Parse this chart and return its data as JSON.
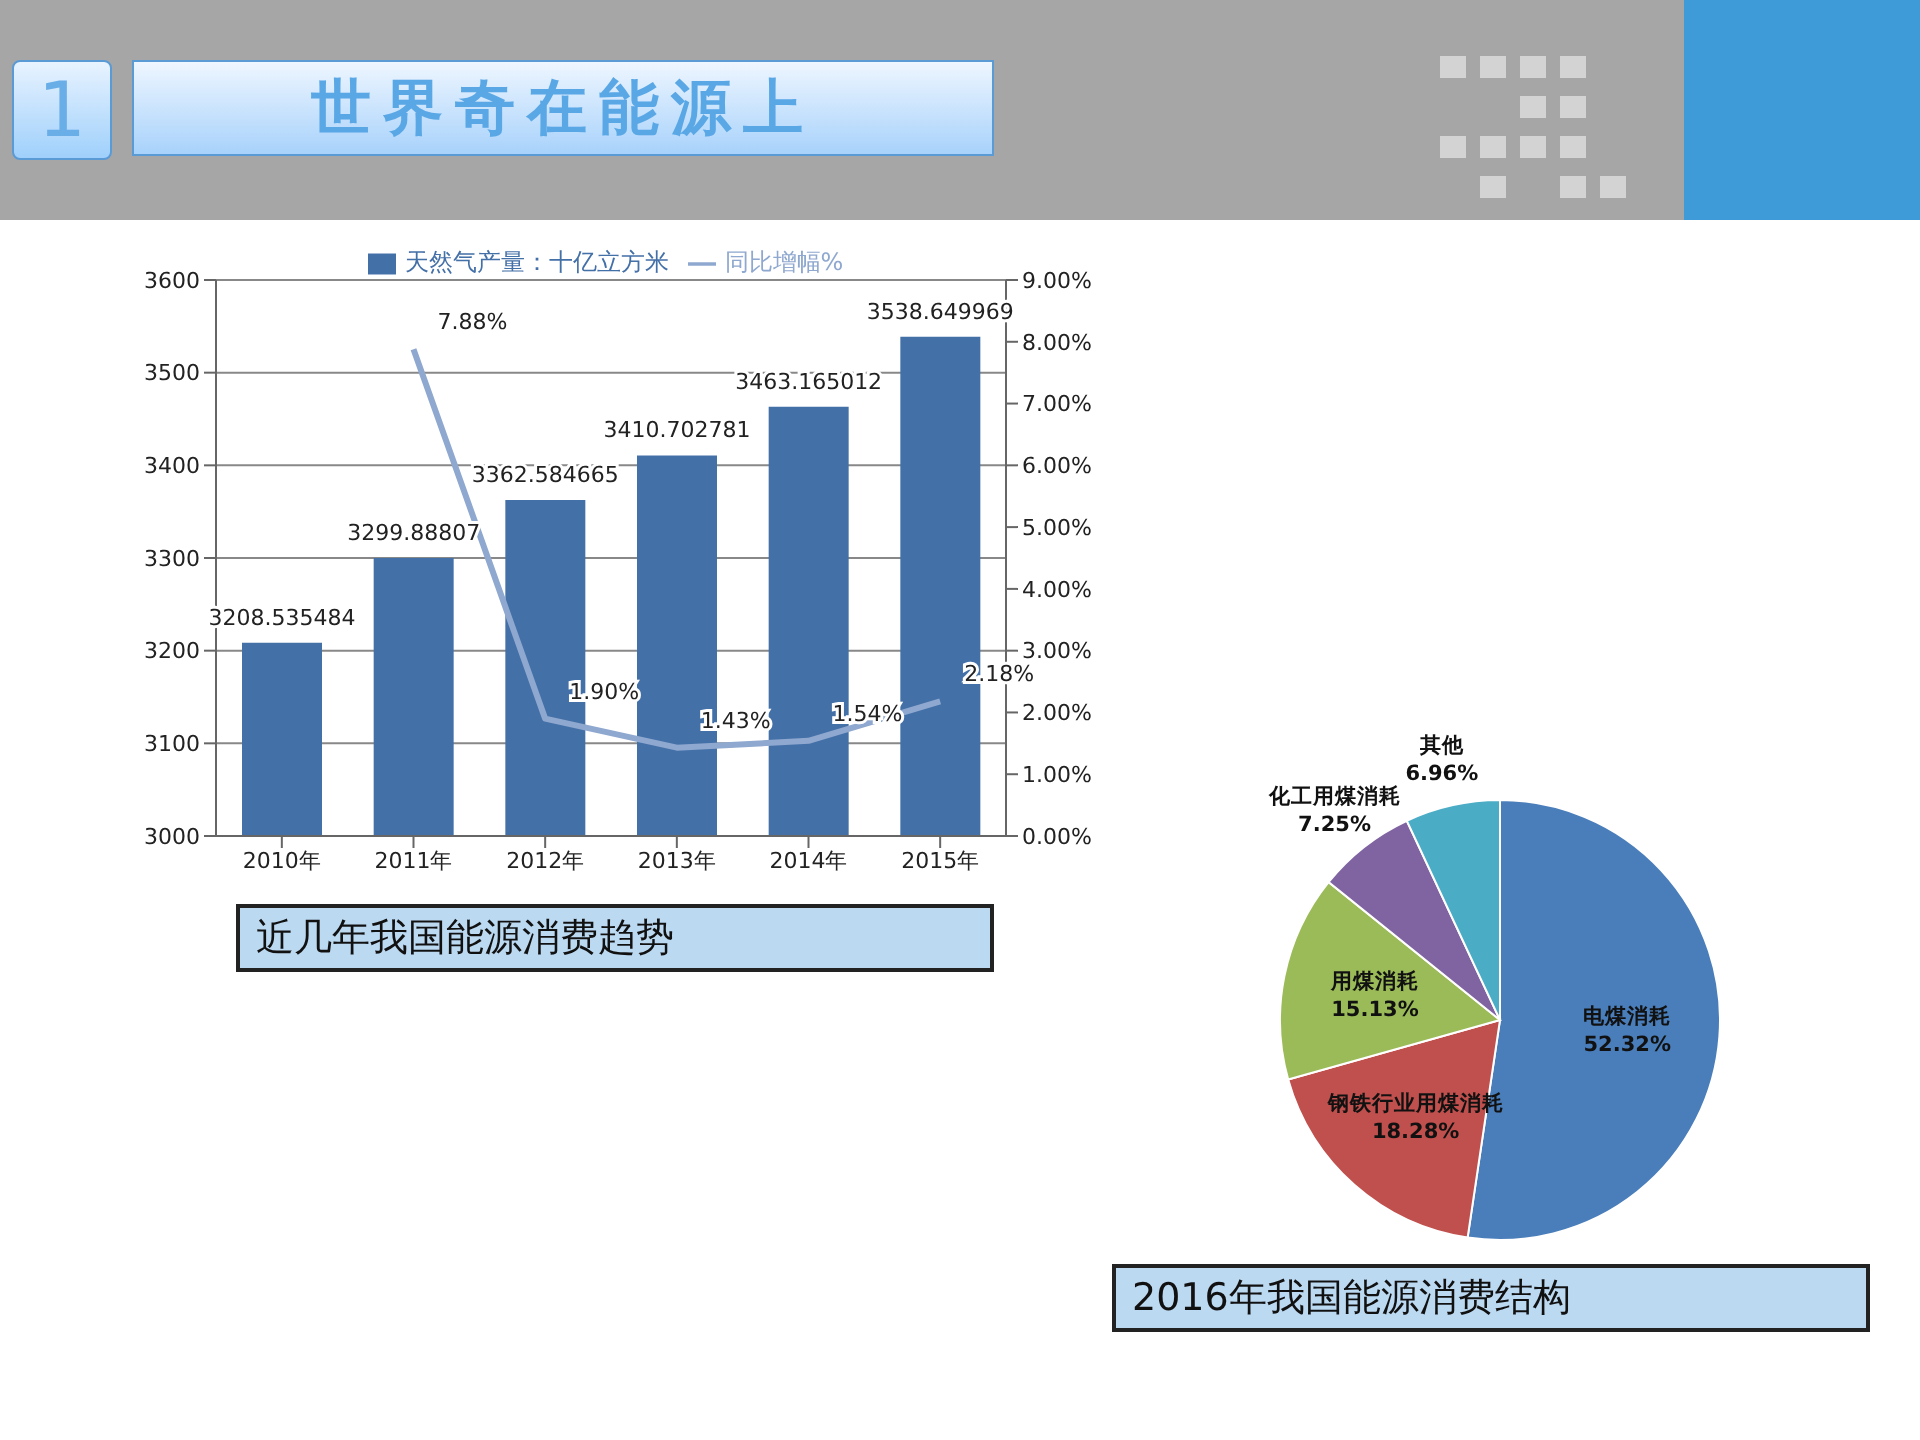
{
  "chart_data": [
    {
      "type": "bar",
      "categories": [
        "2010年",
        "2011年",
        "2012年",
        "2013年",
        "2014年",
        "2015年"
      ],
      "series": [
        {
          "type": "bar",
          "name": "天然气产量：十亿立方米",
          "color": "#4470a8",
          "values": [
            3208.535484,
            3299.88807,
            3362.584665,
            3410.702781,
            3463.165012,
            3538.649969
          ],
          "value_labels": [
            "3208.535484",
            "3299.88807",
            "3362.584665",
            "3410.702781",
            "3463.165012",
            "3538.649969"
          ]
        },
        {
          "type": "line",
          "name": "同比增幅%",
          "color": "#8fa8cf",
          "axis": "y2",
          "values": [
            null,
            7.88,
            1.9,
            1.43,
            1.54,
            2.18
          ],
          "value_labels": [
            null,
            "7.88%",
            "1.90%",
            "1.43%",
            "1.54%",
            "2.18%"
          ]
        }
      ],
      "ylim": [
        3000,
        3600
      ],
      "yticks": [
        3000,
        3100,
        3200,
        3300,
        3400,
        3500,
        3600
      ],
      "y2lim": [
        0,
        9
      ],
      "y2ticks": [
        {
          "value": 0,
          "label": "0.00%"
        },
        {
          "value": 1,
          "label": "1.00%"
        },
        {
          "value": 2,
          "label": "2.00%"
        },
        {
          "value": 3,
          "label": "3.00%"
        },
        {
          "value": 4,
          "label": "4.00%"
        },
        {
          "value": 5,
          "label": "5.00%"
        },
        {
          "value": 6,
          "label": "6.00%"
        },
        {
          "value": 7,
          "label": "7.00%"
        },
        {
          "value": 8,
          "label": "8.00%"
        },
        {
          "value": 9,
          "label": "9.00%"
        }
      ],
      "grid": "y",
      "legend": "top",
      "annotations": [
        "1",
        "世界奇在能源上",
        "近几年我国能源消费趋势"
      ]
    },
    {
      "type": "pie",
      "categories": [
        "电煤消耗",
        "钢铁行业用煤消耗",
        "用煤消耗",
        "化工用煤消耗",
        "其他"
      ],
      "values": [
        52.32,
        18.28,
        15.13,
        7.25,
        6.96
      ],
      "colors": [
        "#4a7ebb",
        "#c0504d",
        "#9bbb59",
        "#8064a2",
        "#4bacc6"
      ],
      "value_labels": [
        "52.32%",
        "18.28%",
        "15.13%",
        "7.25%",
        "6.96%"
      ],
      "annotations": [
        "2016年我国能源消费结构"
      ]
    }
  ]
}
